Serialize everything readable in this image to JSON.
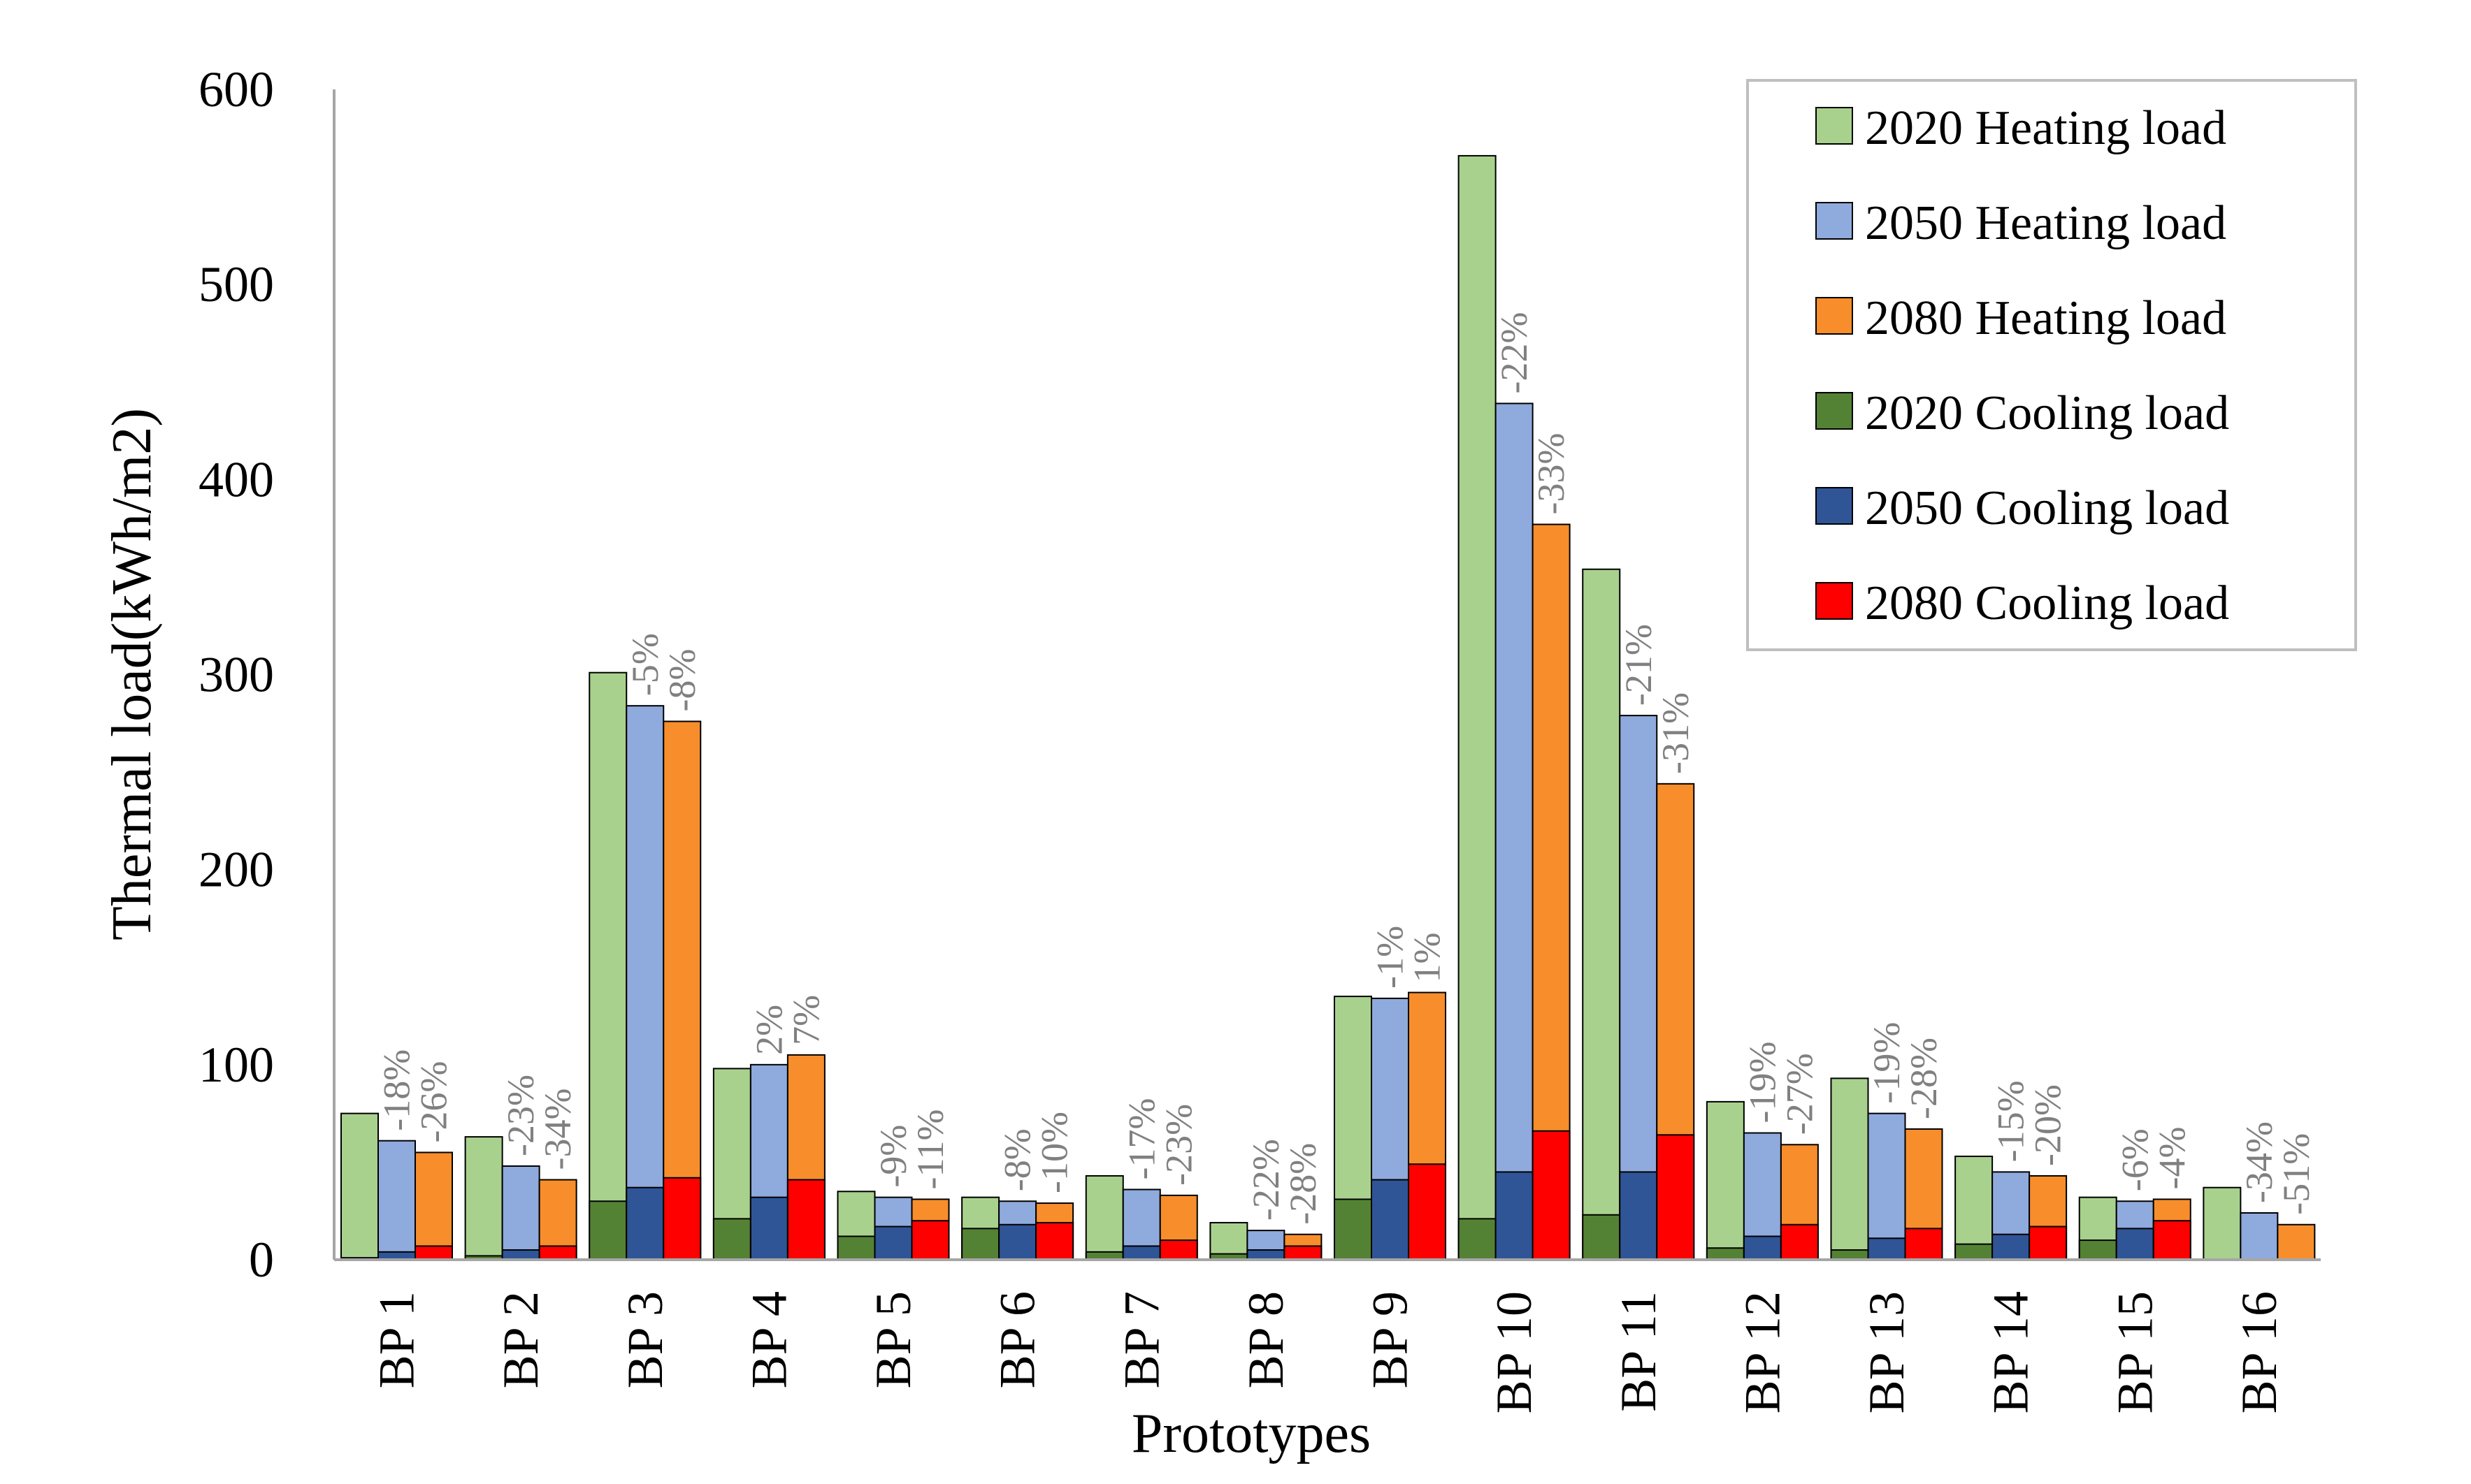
{
  "chart_data": {
    "type": "bar",
    "title": "",
    "xlabel": "Prototypes",
    "ylabel": "Thermal load(kWh/m2)",
    "ylim": [
      0,
      600
    ],
    "yticks": [
      "0",
      "100",
      "200",
      "300",
      "400",
      "500",
      "600"
    ],
    "grid": false,
    "legend_position": "top-right",
    "categories": [
      "BP 1",
      "BP 2",
      "BP 3",
      "BP 4",
      "BP 5",
      "BP 6",
      "BP 7",
      "BP 8",
      "BP 9",
      "BP 10",
      "BP 11",
      "BP 12",
      "BP 13",
      "BP 14",
      "BP 15",
      "BP 16"
    ],
    "heating_series": [
      {
        "name": "2020 Heating load",
        "color": "#a9d18e",
        "values": [
          75,
          63,
          301,
          98,
          35,
          32,
          43,
          19,
          135,
          566,
          354,
          81,
          93,
          53,
          32,
          37
        ]
      },
      {
        "name": "2050 Heating load",
        "color": "#8faadc",
        "values": [
          61,
          48,
          284,
          100,
          32,
          30,
          36,
          15,
          134,
          439,
          279,
          65,
          75,
          45,
          30,
          24
        ]
      },
      {
        "name": "2080 Heating load",
        "color": "#f78e2b",
        "values": [
          55,
          41,
          276,
          105,
          31,
          29,
          33,
          13,
          137,
          377,
          244,
          59,
          67,
          43,
          31,
          18
        ]
      }
    ],
    "cooling_series": [
      {
        "name": "2020 Cooling load",
        "color": "#548235",
        "values": [
          1,
          2,
          30,
          21,
          12,
          16,
          4,
          3,
          31,
          21,
          23,
          6,
          5,
          8,
          10,
          0
        ]
      },
      {
        "name": "2050 Cooling load",
        "color": "#2f5597",
        "values": [
          4,
          5,
          37,
          32,
          17,
          18,
          7,
          5,
          41,
          45,
          45,
          12,
          11,
          13,
          16,
          0
        ]
      },
      {
        "name": "2080 Cooling load",
        "color": "#ff0000",
        "values": [
          7,
          7,
          42,
          41,
          20,
          19,
          10,
          7,
          49,
          66,
          64,
          18,
          16,
          17,
          20,
          0
        ]
      }
    ],
    "legend_order": [
      "2020 Heating load",
      "2050 Heating load",
      "2080 Heating load",
      "2020 Cooling load",
      "2050 Cooling load",
      "2080 Cooling load"
    ],
    "annotations": [
      {
        "category": "BP 1",
        "labels": [
          "-18%",
          "-26%"
        ]
      },
      {
        "category": "BP 2",
        "labels": [
          "-23%",
          "-34%"
        ]
      },
      {
        "category": "BP 3",
        "labels": [
          "-5%",
          "-8%"
        ]
      },
      {
        "category": "BP 4",
        "labels": [
          "2%",
          "7%"
        ]
      },
      {
        "category": "BP 5",
        "labels": [
          "-9%",
          "-11%"
        ]
      },
      {
        "category": "BP 6",
        "labels": [
          "-8%",
          "-10%"
        ]
      },
      {
        "category": "BP 7",
        "labels": [
          "-17%",
          "-23%"
        ]
      },
      {
        "category": "BP 8",
        "labels": [
          "-22%",
          "-28%"
        ]
      },
      {
        "category": "BP 9",
        "labels": [
          "-1%",
          "1%"
        ]
      },
      {
        "category": "BP 10",
        "labels": [
          "-22%",
          "-33%"
        ]
      },
      {
        "category": "BP 11",
        "labels": [
          "-21%",
          "-31%"
        ]
      },
      {
        "category": "BP 12",
        "labels": [
          "-19%",
          "-27%"
        ]
      },
      {
        "category": "BP 13",
        "labels": [
          "-19%",
          "-28%"
        ]
      },
      {
        "category": "BP 14",
        "labels": [
          "-15%",
          "-20%"
        ]
      },
      {
        "category": "BP 15",
        "labels": [
          "-6%",
          "-4%"
        ]
      },
      {
        "category": "BP 16",
        "labels": [
          "-34%",
          "-51%"
        ]
      }
    ]
  }
}
